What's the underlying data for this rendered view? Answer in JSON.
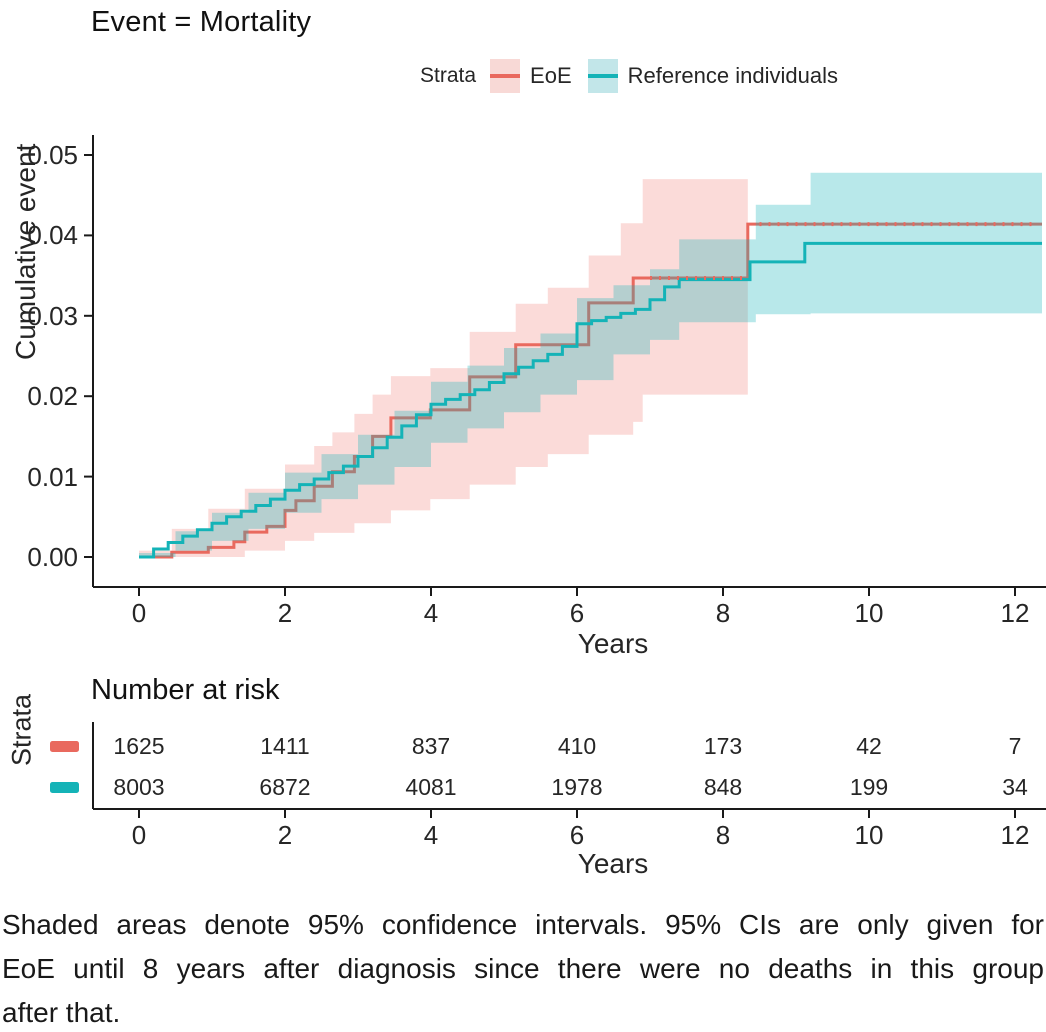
{
  "title": "Event = Mortality",
  "legend": {
    "label": "Strata",
    "items": [
      {
        "name": "EoE",
        "line_color": "#E9695E",
        "band_color": "#F8D9D6"
      },
      {
        "name": "Reference individuals",
        "line_color": "#14B3B7",
        "band_color": "#C2E6E9"
      }
    ]
  },
  "chart_data": {
    "type": "line",
    "subtype": "kaplan-meier-cumulative-incidence",
    "title": "Event = Mortality",
    "xlabel": "Years",
    "ylabel": "Cumulative event",
    "xlim": [
      0,
      12.4
    ],
    "ylim": [
      0,
      0.05
    ],
    "xticks": [
      0,
      2,
      4,
      6,
      8,
      10,
      12
    ],
    "ytick_labels": [
      "0.00",
      "0.01",
      "0.02",
      "0.03",
      "0.04",
      "0.05"
    ],
    "ytick_values": [
      0.0,
      0.01,
      0.02,
      0.03,
      0.04,
      0.05
    ],
    "grid": false,
    "legend_position": "top",
    "x_end": 12.37,
    "series": [
      {
        "name": "EoE",
        "color": "#E9695E",
        "band_fill": "rgba(240,113,104,0.25)",
        "ci_note": "95% CI shown only until 8 years",
        "steps": [
          [
            0,
            0
          ],
          [
            0.45,
            0.0006
          ],
          [
            0.95,
            0.0012
          ],
          [
            1.3,
            0.0019
          ],
          [
            1.45,
            0.0031
          ],
          [
            1.75,
            0.0038
          ],
          [
            2.0,
            0.0058
          ],
          [
            2.15,
            0.007
          ],
          [
            2.4,
            0.0088
          ],
          [
            2.65,
            0.0106
          ],
          [
            2.95,
            0.0125
          ],
          [
            3.2,
            0.015
          ],
          [
            3.45,
            0.0173
          ],
          [
            3.99,
            0.0183
          ],
          [
            4.53,
            0.0224
          ],
          [
            5.16,
            0.0264
          ],
          [
            6.16,
            0.0316
          ],
          [
            6.77,
            0.0347
          ],
          [
            8.34,
            0.0414
          ]
        ],
        "ci_upper": [
          [
            0,
            0.0008
          ],
          [
            0.45,
            0.0035
          ],
          [
            0.95,
            0.006
          ],
          [
            1.45,
            0.0085
          ],
          [
            2.0,
            0.0115
          ],
          [
            2.4,
            0.0138
          ],
          [
            2.65,
            0.0155
          ],
          [
            2.95,
            0.0178
          ],
          [
            3.2,
            0.0202
          ],
          [
            3.45,
            0.0225
          ],
          [
            3.99,
            0.0235
          ],
          [
            4.53,
            0.028
          ],
          [
            5.16,
            0.0315
          ],
          [
            5.6,
            0.0335
          ],
          [
            6.16,
            0.0375
          ],
          [
            6.6,
            0.0415
          ],
          [
            6.9,
            0.047
          ]
        ],
        "ci_lower": [
          [
            0,
            0
          ],
          [
            1.45,
            0.0008
          ],
          [
            2.0,
            0.002
          ],
          [
            2.4,
            0.003
          ],
          [
            2.95,
            0.0042
          ],
          [
            3.45,
            0.0058
          ],
          [
            3.99,
            0.0072
          ],
          [
            4.53,
            0.009
          ],
          [
            5.16,
            0.0112
          ],
          [
            5.6,
            0.0128
          ],
          [
            6.16,
            0.0152
          ],
          [
            6.77,
            0.0168
          ],
          [
            6.9,
            0.0202
          ]
        ],
        "ci_end": 8.34
      },
      {
        "name": "Reference individuals",
        "color": "#14B3B7",
        "band_fill": "rgba(20,179,184,0.30)",
        "steps": [
          [
            0,
            0
          ],
          [
            0.2,
            0.001
          ],
          [
            0.4,
            0.0018
          ],
          [
            0.6,
            0.0026
          ],
          [
            0.8,
            0.0034
          ],
          [
            1.0,
            0.0042
          ],
          [
            1.2,
            0.005
          ],
          [
            1.4,
            0.0057
          ],
          [
            1.6,
            0.0064
          ],
          [
            1.8,
            0.0072
          ],
          [
            2.0,
            0.0083
          ],
          [
            2.2,
            0.009
          ],
          [
            2.4,
            0.0097
          ],
          [
            2.6,
            0.0105
          ],
          [
            2.8,
            0.0113
          ],
          [
            3.0,
            0.0125
          ],
          [
            3.2,
            0.0136
          ],
          [
            3.4,
            0.0149
          ],
          [
            3.6,
            0.0163
          ],
          [
            3.8,
            0.0177
          ],
          [
            4.0,
            0.019
          ],
          [
            4.2,
            0.0196
          ],
          [
            4.4,
            0.0202
          ],
          [
            4.6,
            0.0208
          ],
          [
            4.8,
            0.0217
          ],
          [
            5.0,
            0.0228
          ],
          [
            5.2,
            0.0236
          ],
          [
            5.4,
            0.0244
          ],
          [
            5.6,
            0.0252
          ],
          [
            5.8,
            0.0262
          ],
          [
            6.0,
            0.029
          ],
          [
            6.2,
            0.0294
          ],
          [
            6.4,
            0.0298
          ],
          [
            6.6,
            0.0303
          ],
          [
            6.8,
            0.0308
          ],
          [
            7.0,
            0.032
          ],
          [
            7.2,
            0.0336
          ],
          [
            7.4,
            0.0345
          ],
          [
            8.37,
            0.0367
          ],
          [
            9.12,
            0.039
          ]
        ],
        "ci_upper": [
          [
            0,
            0.0005
          ],
          [
            0.5,
            0.0032
          ],
          [
            1.0,
            0.0055
          ],
          [
            1.5,
            0.008
          ],
          [
            2.0,
            0.0105
          ],
          [
            2.5,
            0.0128
          ],
          [
            3.0,
            0.0152
          ],
          [
            3.5,
            0.0182
          ],
          [
            4.0,
            0.0218
          ],
          [
            4.5,
            0.0238
          ],
          [
            5.0,
            0.026
          ],
          [
            5.5,
            0.0278
          ],
          [
            6.0,
            0.0322
          ],
          [
            6.5,
            0.0338
          ],
          [
            7.0,
            0.0358
          ],
          [
            7.4,
            0.0395
          ],
          [
            8.45,
            0.0438
          ],
          [
            9.2,
            0.0478
          ]
        ],
        "ci_lower": [
          [
            0,
            0
          ],
          [
            0.5,
            0.0008
          ],
          [
            1.0,
            0.002
          ],
          [
            1.5,
            0.0035
          ],
          [
            2.0,
            0.0055
          ],
          [
            2.5,
            0.0072
          ],
          [
            3.0,
            0.009
          ],
          [
            3.5,
            0.0112
          ],
          [
            4.0,
            0.0142
          ],
          [
            4.5,
            0.016
          ],
          [
            5.0,
            0.018
          ],
          [
            5.5,
            0.0202
          ],
          [
            6.0,
            0.022
          ],
          [
            6.5,
            0.0252
          ],
          [
            7.0,
            0.027
          ],
          [
            7.4,
            0.0292
          ],
          [
            8.45,
            0.0302
          ],
          [
            9.2,
            0.0303
          ]
        ],
        "ci_end": 12.37
      }
    ]
  },
  "risk_table": {
    "heading": "Number at risk",
    "axis_label": "Strata",
    "xlabel": "Years",
    "years": [
      0,
      2,
      4,
      6,
      8,
      10,
      12
    ],
    "rows": [
      {
        "strata": "EoE",
        "color": "#E9695E",
        "counts": [
          1625,
          1411,
          837,
          410,
          173,
          42,
          7
        ]
      },
      {
        "strata": "Reference individuals",
        "color": "#14B3B7",
        "counts": [
          8003,
          6872,
          4081,
          1978,
          848,
          199,
          34
        ]
      }
    ]
  },
  "caption": {
    "lines": [
      "Shaded areas denote 95% confidence intervals. 95% CIs are only given for",
      "EoE until 8 years after diagnosis since there were no deaths in this group",
      "after that."
    ]
  }
}
